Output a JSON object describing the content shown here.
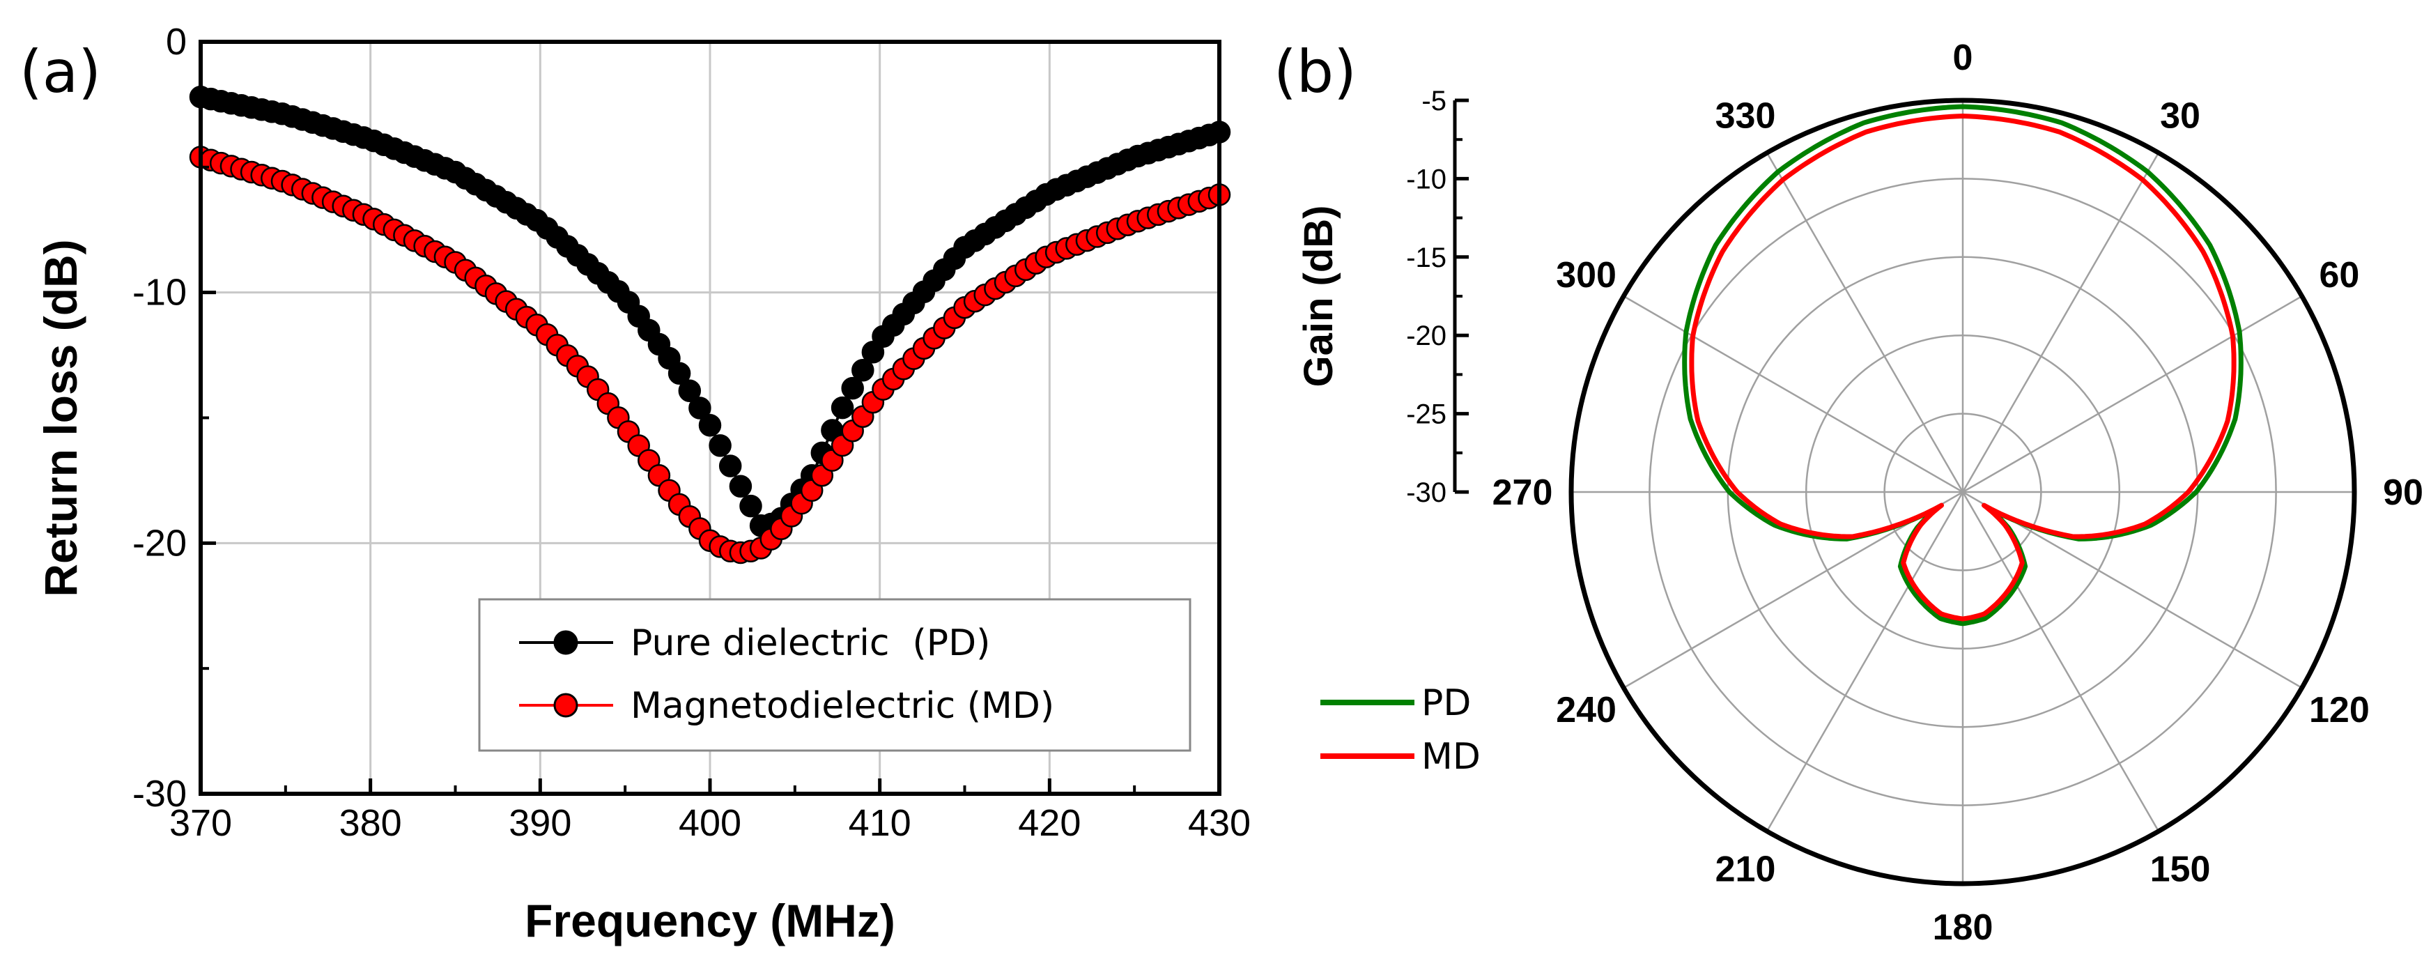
{
  "chart_data": [
    {
      "type": "line",
      "panel_label": "(a)",
      "title": "",
      "xlabel": "Frequency (MHz)",
      "ylabel": "Return loss (dB)",
      "xlim": [
        370,
        430
      ],
      "ylim": [
        -30,
        0
      ],
      "xticks": [
        "370",
        "380",
        "390",
        "400",
        "410",
        "420",
        "430"
      ],
      "yticks": [
        "0",
        "-10",
        "-20",
        "-30"
      ],
      "grid": true,
      "legend_position": "lower-right",
      "series": [
        {
          "name": "Pure dielectric  (PD)",
          "color": "#000000",
          "marker_fill": "#000000",
          "x": [
            370,
            375,
            380,
            385,
            390,
            395,
            398,
            400,
            402,
            403,
            404,
            406,
            408,
            410,
            415,
            420,
            425,
            430
          ],
          "y": [
            -2.2,
            -2.9,
            -3.9,
            -5.2,
            -7.2,
            -10.2,
            -13.0,
            -15.3,
            -18.0,
            -19.3,
            -19.2,
            -17.3,
            -14.3,
            -11.9,
            -8.2,
            -6.0,
            -4.6,
            -3.6
          ]
        },
        {
          "name": "Magnetodielectric (MD)",
          "color": "#ff0000",
          "marker_fill": "#ff0000",
          "x": [
            370,
            375,
            380,
            385,
            390,
            393,
            396,
            398,
            400,
            401,
            402,
            403,
            404,
            406,
            408,
            410,
            415,
            420,
            425,
            430
          ],
          "y": [
            -4.6,
            -5.6,
            -7.0,
            -8.8,
            -11.4,
            -13.5,
            -16.3,
            -18.3,
            -19.9,
            -20.3,
            -20.4,
            -20.2,
            -19.6,
            -17.9,
            -15.9,
            -14.0,
            -10.6,
            -8.5,
            -7.2,
            -6.1
          ]
        }
      ]
    },
    {
      "type": "polar",
      "panel_label": "(b)",
      "title": "",
      "rlabel": "Gain (dB)",
      "rlim": [
        -30,
        -5
      ],
      "rticks": [
        "-5",
        "-10",
        "-15",
        "-20",
        "-25",
        "-30"
      ],
      "angle_labels": [
        "0",
        "30",
        "60",
        "90",
        "120",
        "150",
        "180",
        "210",
        "240",
        "270",
        "300",
        "330"
      ],
      "grid": true,
      "legend_position": "lower-left",
      "series": [
        {
          "name": "PD",
          "color": "#008000",
          "angle_deg": [
            0,
            15,
            30,
            45,
            60,
            75,
            90,
            100,
            112,
            118,
            122,
            128,
            140,
            155,
            170,
            180,
            190,
            205,
            220,
            232,
            238,
            242,
            248,
            260,
            270,
            285,
            300,
            315,
            330,
            345,
            360
          ],
          "gain_db": [
            -5.4,
            -5.6,
            -6.4,
            -7.7,
            -9.6,
            -12.0,
            -15.1,
            -17.8,
            -22.0,
            -25.8,
            -28.2,
            -26.3,
            -23.8,
            -22.8,
            -21.8,
            -21.6,
            -21.8,
            -22.8,
            -23.8,
            -26.3,
            -28.2,
            -25.8,
            -22.0,
            -17.8,
            -15.1,
            -12.0,
            -9.6,
            -7.7,
            -6.4,
            -5.6,
            -5.4
          ]
        },
        {
          "name": "MD",
          "color": "#ff0000",
          "angle_deg": [
            0,
            15,
            30,
            45,
            60,
            75,
            90,
            100,
            112,
            118,
            122,
            128,
            140,
            155,
            170,
            180,
            190,
            205,
            220,
            232,
            238,
            242,
            248,
            260,
            270,
            285,
            300,
            315,
            330,
            345,
            360
          ],
          "gain_db": [
            -6.0,
            -6.2,
            -7.0,
            -8.3,
            -10.1,
            -12.5,
            -15.6,
            -18.2,
            -22.4,
            -26.1,
            -28.4,
            -26.6,
            -24.1,
            -23.1,
            -22.1,
            -21.9,
            -22.1,
            -23.1,
            -24.1,
            -26.6,
            -28.4,
            -26.1,
            -22.4,
            -18.2,
            -15.6,
            -12.5,
            -10.1,
            -8.3,
            -7.0,
            -6.2,
            -6.0
          ]
        }
      ]
    }
  ]
}
